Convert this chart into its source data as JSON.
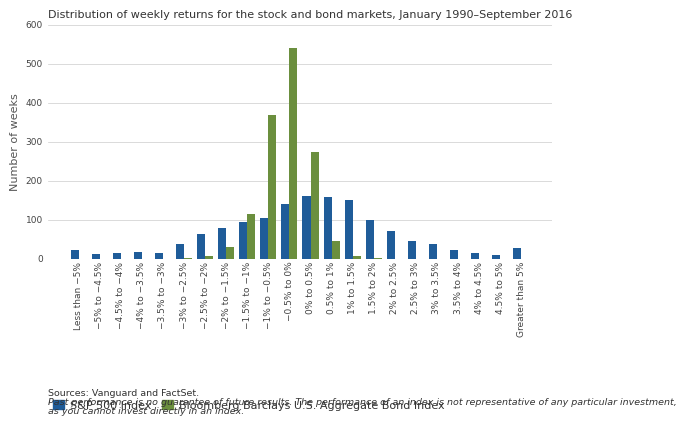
{
  "title": "Distribution of weekly returns for the stock and bond markets, January 1990–September 2016",
  "ylabel": "Number of weeks",
  "categories": [
    "Less than −5%",
    "−5% to −4.5%",
    "−4.5% to −4%",
    "−4% to −3.5%",
    "−3.5% to −3%",
    "−3% to −2.5%",
    "−2.5% to −2%",
    "−2% to −1.5%",
    "−1.5% to −1%",
    "−1% to −0.5%",
    "−0.5% to 0%",
    "0% to 0.5%",
    "0.5% to 1%",
    "1% to 1.5%",
    "1.5% to 2%",
    "2% to 2.5%",
    "2.5% to 3%",
    "3% to 3.5%",
    "3.5% to 4%",
    "4% to 4.5%",
    "4.5% to 5%",
    "Greater than 5%"
  ],
  "sp500": [
    22,
    12,
    16,
    18,
    16,
    38,
    63,
    80,
    95,
    105,
    140,
    160,
    158,
    150,
    100,
    70,
    45,
    38,
    22,
    15,
    10,
    28
  ],
  "bond": [
    0,
    0,
    0,
    0,
    0,
    2,
    8,
    30,
    115,
    370,
    540,
    275,
    45,
    8,
    2,
    0,
    0,
    0,
    0,
    0,
    0,
    0
  ],
  "sp500_color": "#1f5c99",
  "bond_color": "#6b8f3e",
  "sp500_label": "S&P 500 Index",
  "bond_label": "Bloomberg Barclays U.S. Aggregate Bond Index",
  "ylim": [
    0,
    600
  ],
  "yticks": [
    0,
    100,
    200,
    300,
    400,
    500,
    600
  ],
  "footnote1": "Sources: Vanguard and FactSet.",
  "footnote2": "Past performance is no guarantee of future results. The performance of an index is not representative of any particular investment,",
  "footnote3": "as you cannot invest directly in an index.",
  "background_color": "#ffffff",
  "title_fontsize": 8,
  "axis_fontsize": 8,
  "tick_fontsize": 6.5,
  "legend_fontsize": 8,
  "footnote_fontsize": 6.8
}
